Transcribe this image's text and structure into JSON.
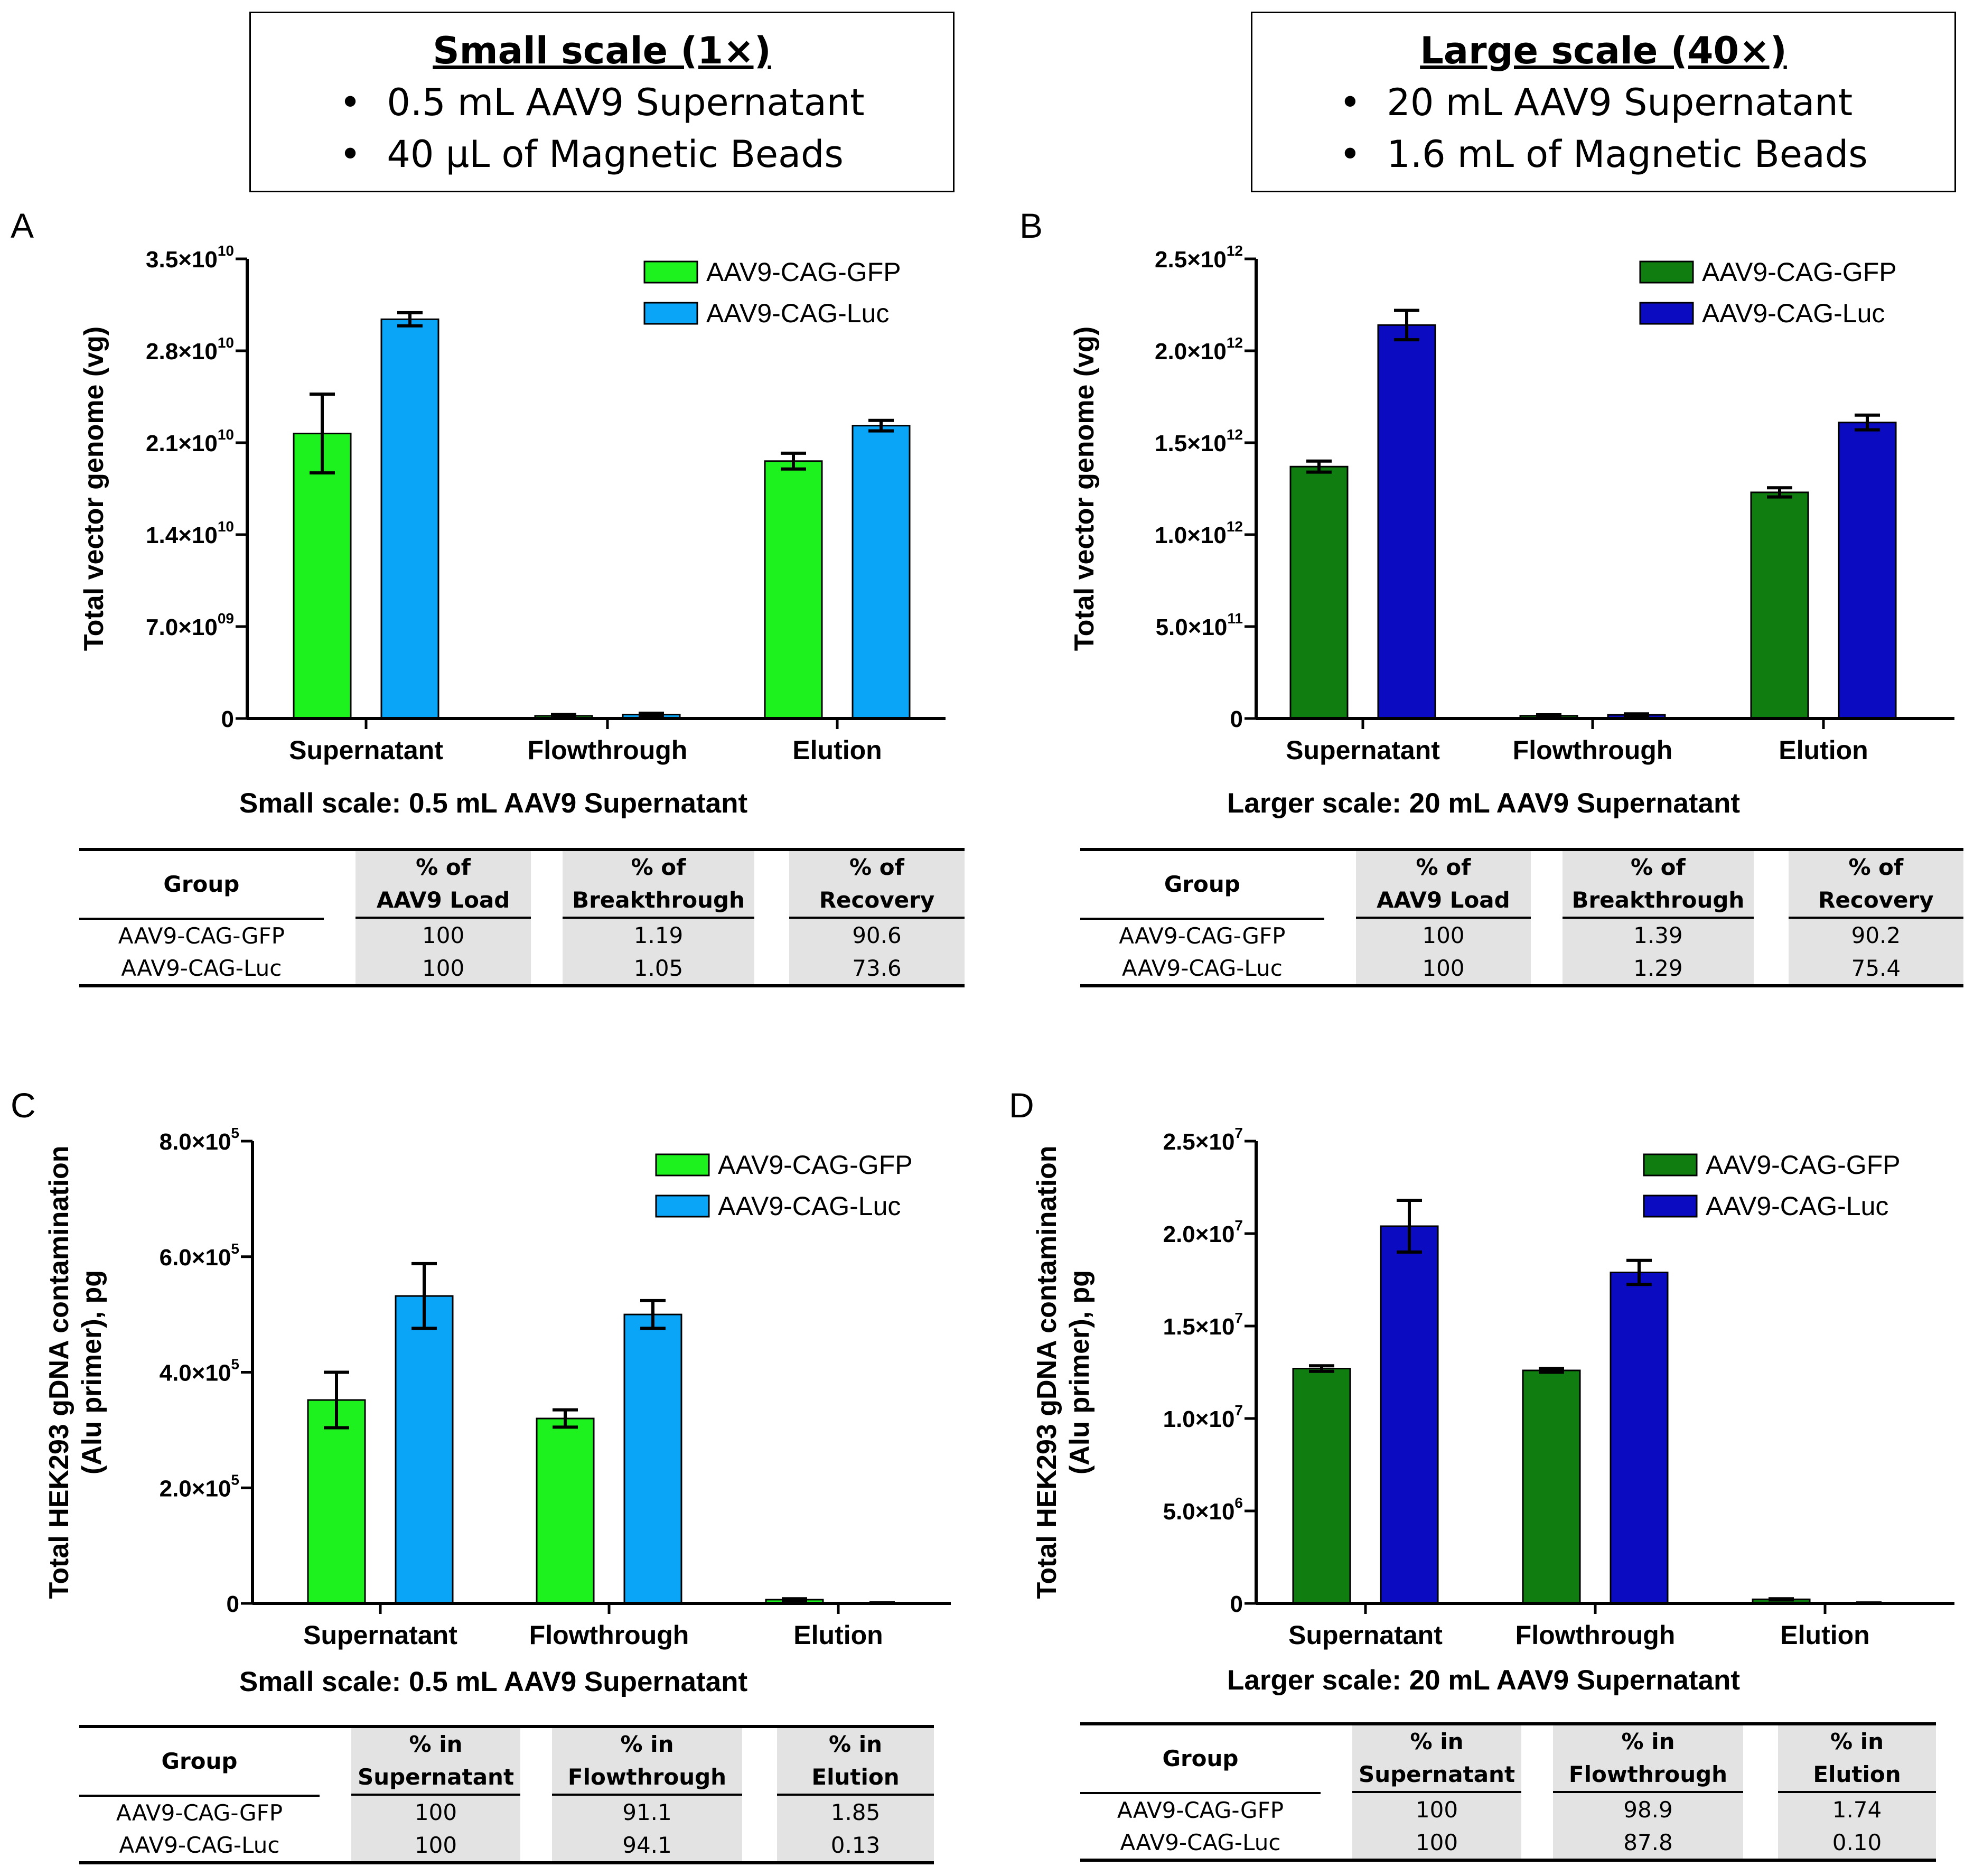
{
  "headers": {
    "small": {
      "title": "Small scale (1×)",
      "items": [
        "0.5 mL AAV9 Supernatant",
        "40 µL of Magnetic Beads"
      ]
    },
    "large": {
      "title": "Large scale (40×)",
      "items": [
        "20 mL AAV9 Supernatant",
        "1.6 mL of Magnetic Beads"
      ]
    }
  },
  "colors": {
    "gfp_light": "#1ef21e",
    "luc_light": "#0aa5f7",
    "gfp_dark": "#0f7d0f",
    "luc_dark": "#0b0bc2"
  },
  "chart_data": [
    {
      "panel": "A",
      "type": "bar",
      "categories": [
        "Supernatant",
        "Flowthrough",
        "Elution"
      ],
      "ylabel": [
        "Total vector genome (vg)"
      ],
      "ylim": [
        0,
        35000000000.0
      ],
      "yticks": [
        {
          "value": 0,
          "mant": "0",
          "exp": ""
        },
        {
          "value": 7000000000.0,
          "mant": "7.0×10",
          "exp": "09"
        },
        {
          "value": 14000000000.0,
          "mant": "1.4×10",
          "exp": "10"
        },
        {
          "value": 21000000000.0,
          "mant": "2.1×10",
          "exp": "10"
        },
        {
          "value": 28000000000.0,
          "mant": "2.8×10",
          "exp": "10"
        },
        {
          "value": 35000000000.0,
          "mant": "3.5×10",
          "exp": "10"
        }
      ],
      "series": [
        {
          "name": "AAV9-CAG-GFP",
          "color": "#1ef21e",
          "values": [
            21700000000.0,
            200000000.0,
            19600000000.0
          ],
          "errors": [
            3000000000.0,
            100000000.0,
            600000000.0
          ]
        },
        {
          "name": "AAV9-CAG-Luc",
          "color": "#0aa5f7",
          "values": [
            30400000000.0,
            300000000.0,
            22300000000.0
          ],
          "errors": [
            500000000.0,
            100000000.0,
            400000000.0
          ]
        }
      ],
      "legend": "top-right",
      "subtitle": "Small scale: 0.5 mL AAV9 Supernatant",
      "table": {
        "group_header": "Group",
        "columns": [
          [
            "% of",
            "AAV9 Load"
          ],
          [
            "% of",
            "Breakthrough"
          ],
          [
            "% of",
            "Recovery"
          ]
        ],
        "rows": [
          {
            "group": "AAV9-CAG-GFP",
            "cells": [
              "100",
              "1.19",
              "90.6"
            ]
          },
          {
            "group": "AAV9-CAG-Luc",
            "cells": [
              "100",
              "1.05",
              "73.6"
            ]
          }
        ]
      }
    },
    {
      "panel": "B",
      "type": "bar",
      "categories": [
        "Supernatant",
        "Flowthrough",
        "Elution"
      ],
      "ylabel": [
        "Total vector genome (vg)"
      ],
      "ylim": [
        0,
        2500000000000.0
      ],
      "yticks": [
        {
          "value": 0,
          "mant": "0",
          "exp": ""
        },
        {
          "value": 500000000000.0,
          "mant": "5.0×10",
          "exp": "11"
        },
        {
          "value": 1000000000000.0,
          "mant": "1.0×10",
          "exp": "12"
        },
        {
          "value": 1500000000000.0,
          "mant": "1.5×10",
          "exp": "12"
        },
        {
          "value": 2000000000000.0,
          "mant": "2.0×10",
          "exp": "12"
        },
        {
          "value": 2500000000000.0,
          "mant": "2.5×10",
          "exp": "12"
        }
      ],
      "series": [
        {
          "name": "AAV9-CAG-GFP",
          "color": "#0f7d0f",
          "values": [
            1370000000000.0,
            15000000000.0,
            1230000000000.0
          ],
          "errors": [
            30000000000.0,
            5000000000.0,
            25000000000.0
          ]
        },
        {
          "name": "AAV9-CAG-Luc",
          "color": "#0b0bc2",
          "values": [
            2140000000000.0,
            20000000000.0,
            1610000000000.0
          ],
          "errors": [
            80000000000.0,
            5000000000.0,
            40000000000.0
          ]
        }
      ],
      "legend": "top-right",
      "subtitle": "Larger scale: 20 mL AAV9 Supernatant",
      "table": {
        "group_header": "Group",
        "columns": [
          [
            "% of",
            "AAV9 Load"
          ],
          [
            "% of",
            "Breakthrough"
          ],
          [
            "% of",
            "Recovery"
          ]
        ],
        "rows": [
          {
            "group": "AAV9-CAG-GFP",
            "cells": [
              "100",
              "1.39",
              "90.2"
            ]
          },
          {
            "group": "AAV9-CAG-Luc",
            "cells": [
              "100",
              "1.29",
              "75.4"
            ]
          }
        ]
      }
    },
    {
      "panel": "C",
      "type": "bar",
      "categories": [
        "Supernatant",
        "Flowthrough",
        "Elution"
      ],
      "ylabel": [
        "Total HEK293 gDNA contamination",
        "(Alu primer), pg"
      ],
      "ylim": [
        0,
        800000.0
      ],
      "yticks": [
        {
          "value": 0,
          "mant": "0",
          "exp": ""
        },
        {
          "value": 200000.0,
          "mant": "2.0×10",
          "exp": "5"
        },
        {
          "value": 400000.0,
          "mant": "4.0×10",
          "exp": "5"
        },
        {
          "value": 600000.0,
          "mant": "6.0×10",
          "exp": "5"
        },
        {
          "value": 800000.0,
          "mant": "8.0×10",
          "exp": "5"
        }
      ],
      "series": [
        {
          "name": "AAV9-CAG-GFP",
          "color": "#1ef21e",
          "values": [
            352000.0,
            320000.0,
            6500.0
          ],
          "errors": [
            48000.0,
            15000.0,
            1500.0
          ]
        },
        {
          "name": "AAV9-CAG-Luc",
          "color": "#0aa5f7",
          "values": [
            532000.0,
            500000.0,
            700.0
          ],
          "errors": [
            56000.0,
            24000.0,
            200.0
          ]
        }
      ],
      "legend": "top-right",
      "subtitle": "Small scale: 0.5 mL AAV9 Supernatant",
      "table": {
        "group_header": "Group",
        "columns": [
          [
            "% in",
            "Supernatant"
          ],
          [
            "% in",
            "Flowthrough"
          ],
          [
            "% in",
            "Elution"
          ]
        ],
        "rows": [
          {
            "group": "AAV9-CAG-GFP",
            "cells": [
              "100",
              "91.1",
              "1.85"
            ]
          },
          {
            "group": "AAV9-CAG-Luc",
            "cells": [
              "100",
              "94.1",
              "0.13"
            ]
          }
        ]
      }
    },
    {
      "panel": "D",
      "type": "bar",
      "categories": [
        "Supernatant",
        "Flowthrough",
        "Elution"
      ],
      "ylabel": [
        "Total HEK293 gDNA contamination",
        "(Alu primer), pg"
      ],
      "ylim": [
        0,
        25000000.0
      ],
      "yticks": [
        {
          "value": 0,
          "mant": "0",
          "exp": ""
        },
        {
          "value": 5000000.0,
          "mant": "5.0×10",
          "exp": "6"
        },
        {
          "value": 10000000.0,
          "mant": "1.0×10",
          "exp": "7"
        },
        {
          "value": 15000000.0,
          "mant": "1.5×10",
          "exp": "7"
        },
        {
          "value": 20000000.0,
          "mant": "2.0×10",
          "exp": "7"
        },
        {
          "value": 25000000.0,
          "mant": "2.5×10",
          "exp": "7"
        }
      ],
      "series": [
        {
          "name": "AAV9-CAG-GFP",
          "color": "#0f7d0f",
          "values": [
            12700000.0,
            12600000.0,
            220000.0
          ],
          "errors": [
            150000.0,
            100000.0,
            30000.0
          ]
        },
        {
          "name": "AAV9-CAG-Luc",
          "color": "#0b0bc2",
          "values": [
            20400000.0,
            17900000.0,
            20000.0
          ],
          "errors": [
            1400000.0,
            650000.0,
            5000.0
          ]
        }
      ],
      "legend": "top-right",
      "subtitle": "Larger scale: 20 mL AAV9 Supernatant",
      "table": {
        "group_header": "Group",
        "columns": [
          [
            "% in",
            "Supernatant"
          ],
          [
            "% in",
            "Flowthrough"
          ],
          [
            "% in",
            "Elution"
          ]
        ],
        "rows": [
          {
            "group": "AAV9-CAG-GFP",
            "cells": [
              "100",
              "98.9",
              "1.74"
            ]
          },
          {
            "group": "AAV9-CAG-Luc",
            "cells": [
              "100",
              "87.8",
              "0.10"
            ]
          }
        ]
      }
    }
  ]
}
